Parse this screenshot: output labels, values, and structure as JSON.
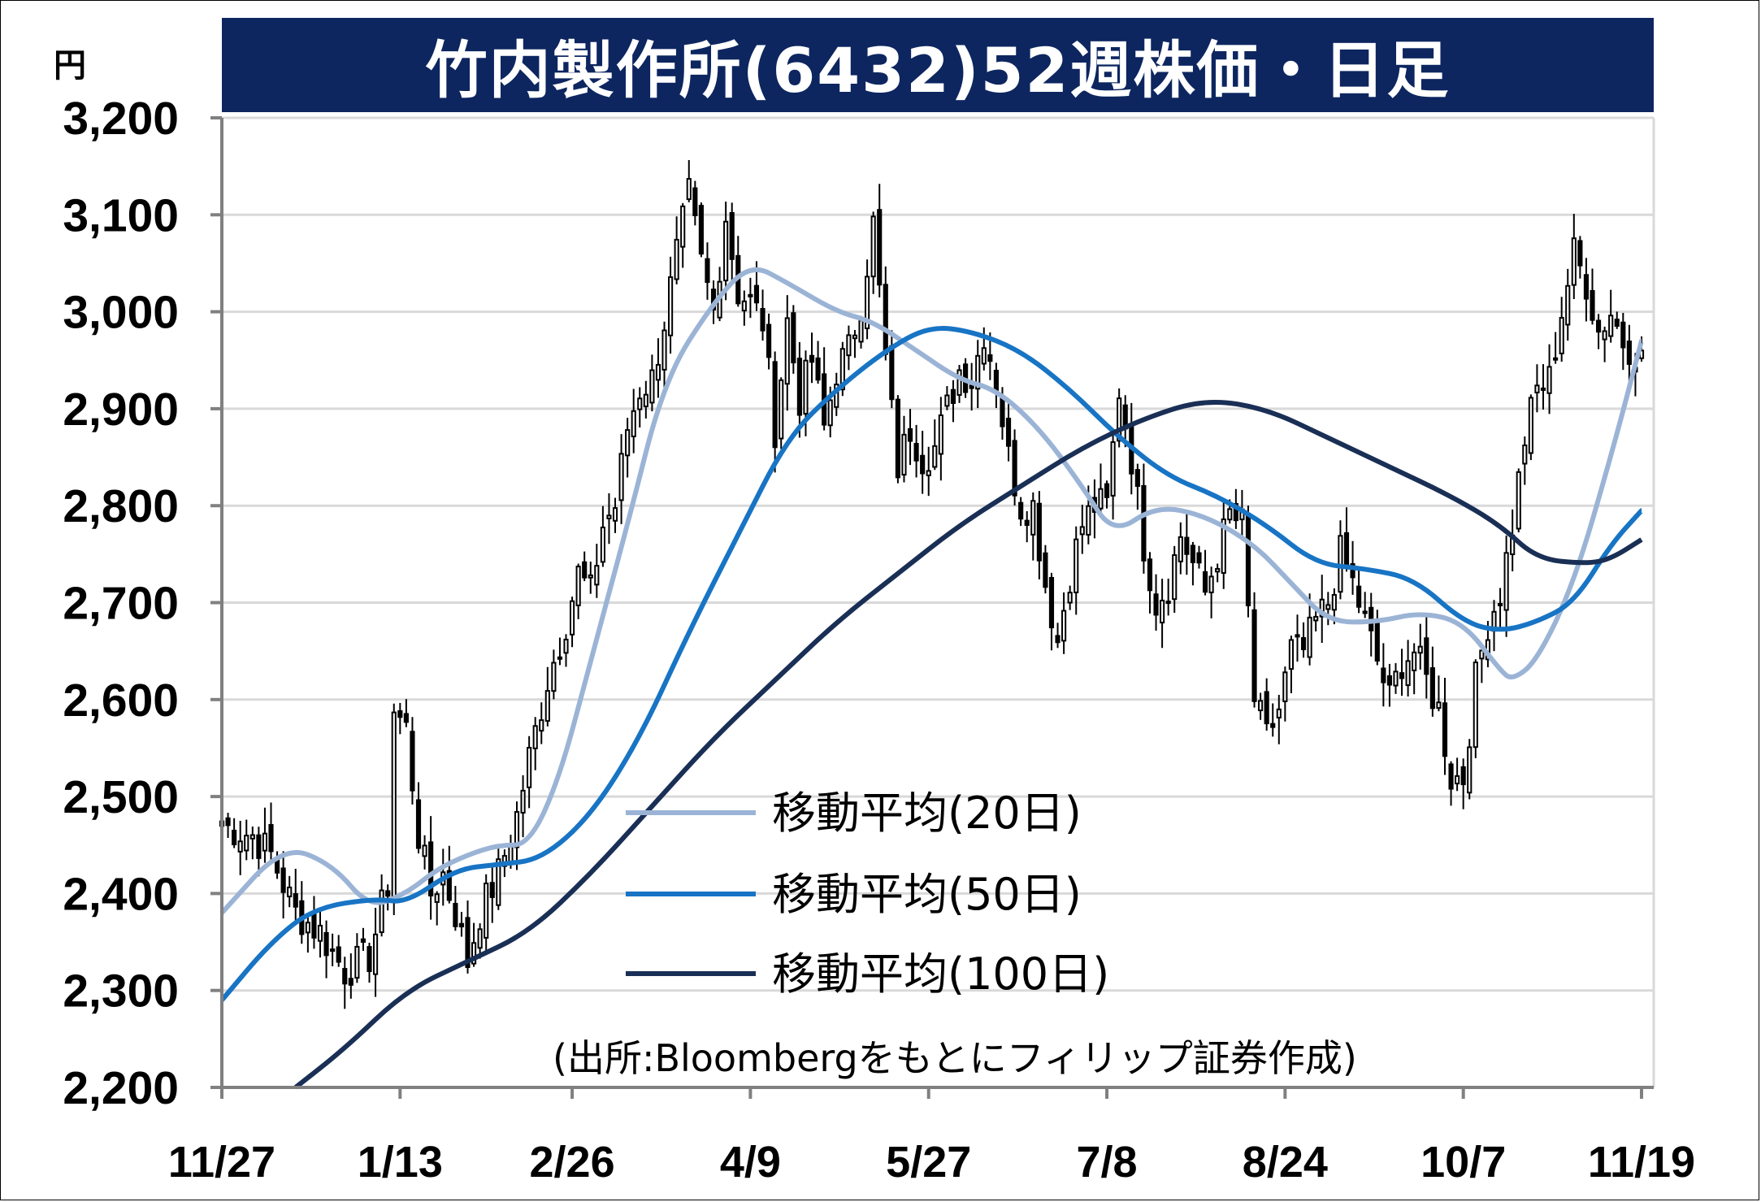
{
  "title": "竹内製作所(6432)52週株価・日足",
  "unit_label": "円",
  "source_note": "(出所:Bloombergをもとにフィリップ証券作成)",
  "colors": {
    "title_bg": "#0d2660",
    "ma20": "#9bb4d6",
    "ma50": "#1874c4",
    "ma100": "#1a2f55",
    "candle_stroke": "#000000",
    "grid": "#d9d9d9",
    "axis": "#808080"
  },
  "chart_data": {
    "type": "candlestick",
    "title": "竹内製作所(6432)52週株価・日足",
    "ylim": [
      2200,
      3200
    ],
    "y_ticks": [
      "2,200",
      "2,300",
      "2,400",
      "2,500",
      "2,600",
      "2,700",
      "2,800",
      "2,900",
      "3,000",
      "3,100",
      "3,200"
    ],
    "y_tick_values": [
      2200,
      2300,
      2400,
      2500,
      2600,
      2700,
      2800,
      2900,
      3000,
      3100,
      3200
    ],
    "x_tick_labels": [
      "11/27",
      "1/13",
      "2/26",
      "4/9",
      "5/27",
      "7/8",
      "8/24",
      "10/7",
      "11/19"
    ],
    "x_tick_positions": [
      0,
      29,
      57,
      86,
      115,
      144,
      173,
      202,
      231
    ],
    "n_days": 232,
    "grid": true,
    "legend_position": "center",
    "series": [
      {
        "name": "移動平均(20日)",
        "color": "#9bb4d6",
        "points": [
          [
            0,
            2380
          ],
          [
            10,
            2450
          ],
          [
            18,
            2430
          ],
          [
            24,
            2385
          ],
          [
            30,
            2400
          ],
          [
            35,
            2425
          ],
          [
            40,
            2440
          ],
          [
            45,
            2450
          ],
          [
            50,
            2450
          ],
          [
            55,
            2520
          ],
          [
            60,
            2640
          ],
          [
            66,
            2780
          ],
          [
            72,
            2930
          ],
          [
            80,
            3010
          ],
          [
            86,
            3050
          ],
          [
            92,
            3030
          ],
          [
            100,
            3000
          ],
          [
            106,
            2990
          ],
          [
            113,
            2960
          ],
          [
            120,
            2930
          ],
          [
            126,
            2920
          ],
          [
            133,
            2880
          ],
          [
            140,
            2820
          ],
          [
            145,
            2770
          ],
          [
            152,
            2800
          ],
          [
            160,
            2790
          ],
          [
            168,
            2760
          ],
          [
            174,
            2720
          ],
          [
            180,
            2680
          ],
          [
            188,
            2680
          ],
          [
            195,
            2690
          ],
          [
            202,
            2680
          ],
          [
            208,
            2630
          ],
          [
            210,
            2620
          ],
          [
            214,
            2640
          ],
          [
            220,
            2720
          ],
          [
            226,
            2850
          ],
          [
            231,
            2970
          ]
        ]
      },
      {
        "name": "移動平均(50日)",
        "color": "#1874c4",
        "points": [
          [
            0,
            2290
          ],
          [
            8,
            2350
          ],
          [
            15,
            2385
          ],
          [
            25,
            2395
          ],
          [
            30,
            2390
          ],
          [
            38,
            2425
          ],
          [
            45,
            2430
          ],
          [
            52,
            2435
          ],
          [
            60,
            2480
          ],
          [
            68,
            2560
          ],
          [
            76,
            2670
          ],
          [
            84,
            2770
          ],
          [
            92,
            2870
          ],
          [
            100,
            2920
          ],
          [
            108,
            2960
          ],
          [
            115,
            2985
          ],
          [
            122,
            2980
          ],
          [
            130,
            2960
          ],
          [
            138,
            2920
          ],
          [
            146,
            2870
          ],
          [
            154,
            2830
          ],
          [
            162,
            2810
          ],
          [
            170,
            2780
          ],
          [
            178,
            2740
          ],
          [
            186,
            2735
          ],
          [
            194,
            2725
          ],
          [
            202,
            2680
          ],
          [
            208,
            2670
          ],
          [
            214,
            2680
          ],
          [
            220,
            2700
          ],
          [
            226,
            2760
          ],
          [
            231,
            2795
          ]
        ]
      },
      {
        "name": "移動平均(100日)",
        "color": "#1a2f55",
        "points": [
          [
            12,
            2200
          ],
          [
            20,
            2240
          ],
          [
            30,
            2300
          ],
          [
            40,
            2330
          ],
          [
            50,
            2360
          ],
          [
            60,
            2420
          ],
          [
            70,
            2490
          ],
          [
            80,
            2560
          ],
          [
            90,
            2620
          ],
          [
            100,
            2680
          ],
          [
            110,
            2730
          ],
          [
            120,
            2780
          ],
          [
            130,
            2820
          ],
          [
            140,
            2860
          ],
          [
            150,
            2890
          ],
          [
            160,
            2910
          ],
          [
            170,
            2900
          ],
          [
            180,
            2870
          ],
          [
            190,
            2840
          ],
          [
            200,
            2810
          ],
          [
            208,
            2780
          ],
          [
            214,
            2745
          ],
          [
            222,
            2740
          ],
          [
            226,
            2745
          ],
          [
            231,
            2765
          ]
        ]
      }
    ],
    "candles_anchor_closes": [
      [
        0,
        2470
      ],
      [
        5,
        2460
      ],
      [
        8,
        2440
      ],
      [
        12,
        2380
      ],
      [
        16,
        2360
      ],
      [
        20,
        2320
      ],
      [
        24,
        2335
      ],
      [
        27,
        2410
      ],
      [
        28,
        2590
      ],
      [
        30,
        2570
      ],
      [
        32,
        2460
      ],
      [
        34,
        2400
      ],
      [
        36,
        2420
      ],
      [
        38,
        2380
      ],
      [
        40,
        2330
      ],
      [
        42,
        2380
      ],
      [
        45,
        2420
      ],
      [
        48,
        2480
      ],
      [
        50,
        2540
      ],
      [
        53,
        2620
      ],
      [
        56,
        2680
      ],
      [
        58,
        2730
      ],
      [
        60,
        2710
      ],
      [
        62,
        2780
      ],
      [
        64,
        2800
      ],
      [
        66,
        2880
      ],
      [
        68,
        2920
      ],
      [
        70,
        2930
      ],
      [
        72,
        2990
      ],
      [
        74,
        3060
      ],
      [
        76,
        3120
      ],
      [
        78,
        3050
      ],
      [
        80,
        3000
      ],
      [
        82,
        3100
      ],
      [
        84,
        3020
      ],
      [
        86,
        3010
      ],
      [
        88,
        2990
      ],
      [
        90,
        2880
      ],
      [
        92,
        2990
      ],
      [
        94,
        2910
      ],
      [
        96,
        2950
      ],
      [
        98,
        2880
      ],
      [
        100,
        2940
      ],
      [
        102,
        2960
      ],
      [
        104,
        3010
      ],
      [
        106,
        3090
      ],
      [
        108,
        2950
      ],
      [
        110,
        2840
      ],
      [
        112,
        2880
      ],
      [
        114,
        2850
      ],
      [
        116,
        2860
      ],
      [
        118,
        2900
      ],
      [
        120,
        2940
      ],
      [
        122,
        2930
      ],
      [
        124,
        2980
      ],
      [
        126,
        2930
      ],
      [
        128,
        2850
      ],
      [
        130,
        2800
      ],
      [
        132,
        2800
      ],
      [
        134,
        2720
      ],
      [
        136,
        2660
      ],
      [
        138,
        2730
      ],
      [
        140,
        2780
      ],
      [
        142,
        2800
      ],
      [
        144,
        2800
      ],
      [
        146,
        2920
      ],
      [
        148,
        2850
      ],
      [
        150,
        2760
      ],
      [
        152,
        2700
      ],
      [
        154,
        2720
      ],
      [
        156,
        2770
      ],
      [
        158,
        2740
      ],
      [
        160,
        2710
      ],
      [
        162,
        2750
      ],
      [
        164,
        2790
      ],
      [
        166,
        2780
      ],
      [
        168,
        2600
      ],
      [
        170,
        2560
      ],
      [
        172,
        2590
      ],
      [
        174,
        2650
      ],
      [
        176,
        2650
      ],
      [
        178,
        2680
      ],
      [
        180,
        2700
      ],
      [
        182,
        2750
      ],
      [
        184,
        2720
      ],
      [
        186,
        2680
      ],
      [
        188,
        2640
      ],
      [
        190,
        2600
      ],
      [
        192,
        2640
      ],
      [
        194,
        2650
      ],
      [
        196,
        2620
      ],
      [
        198,
        2590
      ],
      [
        200,
        2520
      ],
      [
        202,
        2520
      ],
      [
        204,
        2620
      ],
      [
        206,
        2680
      ],
      [
        208,
        2710
      ],
      [
        210,
        2780
      ],
      [
        212,
        2870
      ],
      [
        214,
        2920
      ],
      [
        216,
        2930
      ],
      [
        218,
        3000
      ],
      [
        220,
        3060
      ],
      [
        222,
        3030
      ],
      [
        224,
        2980
      ],
      [
        226,
        3000
      ],
      [
        228,
        2970
      ],
      [
        230,
        2960
      ],
      [
        231,
        2960
      ]
    ]
  },
  "legend": [
    {
      "label": "移動平均(20日)",
      "color": "#9bb4d6"
    },
    {
      "label": "移動平均(50日)",
      "color": "#1874c4"
    },
    {
      "label": "移動平均(100日)",
      "color": "#1a2f55"
    }
  ]
}
